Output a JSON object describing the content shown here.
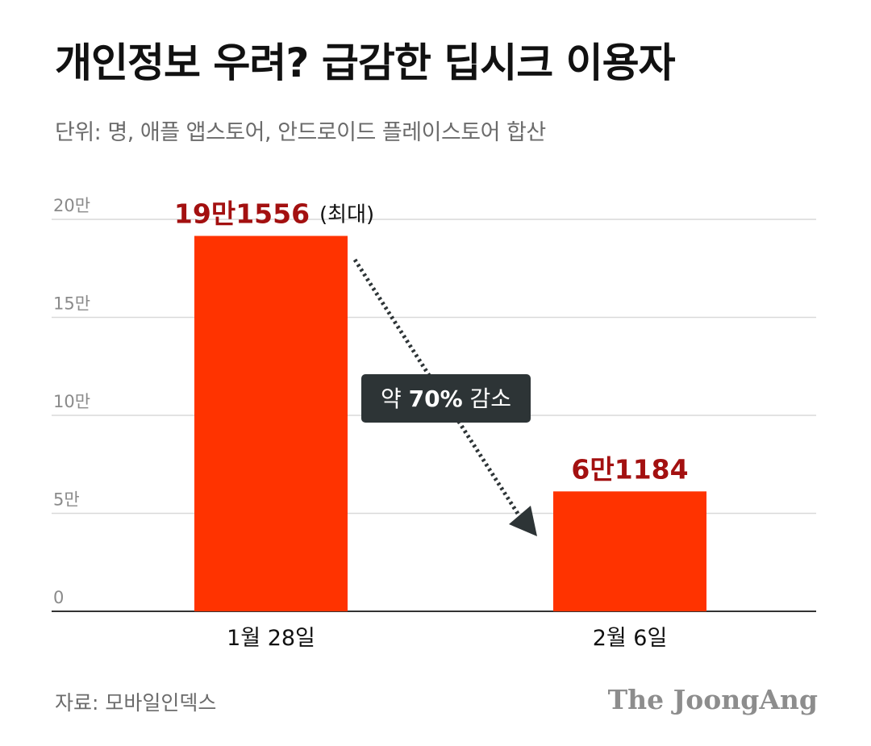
{
  "title": "개인정보 우려? 급감한 딥시크 이용자",
  "subtitle": "단위: 명, 애플 앱스토어, 안드로이드 플레이스토어 합산",
  "source": "자료: 모바일인덱스",
  "logo": "The JoongAng",
  "colors": {
    "bar": "#ff3300",
    "data_label": "#a31010",
    "callout_bg": "#2d3436",
    "grid": "#d9d9d9",
    "axis": "#333333"
  },
  "chart_data": {
    "type": "bar",
    "title": "개인정보 우려? 급감한 딥시크 이용자",
    "subtitle": "단위: 명, 애플 앱스토어, 안드로이드 플레이스토어 합산",
    "categories": [
      "1월 28일",
      "2월 6일"
    ],
    "values": [
      191556,
      61184
    ],
    "data_labels": [
      "19만1556",
      "6만1184"
    ],
    "data_label_notes": [
      "(최대)",
      ""
    ],
    "ylim": [
      0,
      200000
    ],
    "yticks": [
      0,
      50000,
      100000,
      150000,
      200000
    ],
    "ytick_labels": [
      "0",
      "5만",
      "10만",
      "15만",
      "20만"
    ],
    "grid": true,
    "annotation": {
      "text_prefix": "약 ",
      "text_value": "70%",
      "text_suffix": " 감소",
      "from": "1월 28일",
      "to": "2월 6일",
      "style": "dotted-arrow"
    }
  }
}
